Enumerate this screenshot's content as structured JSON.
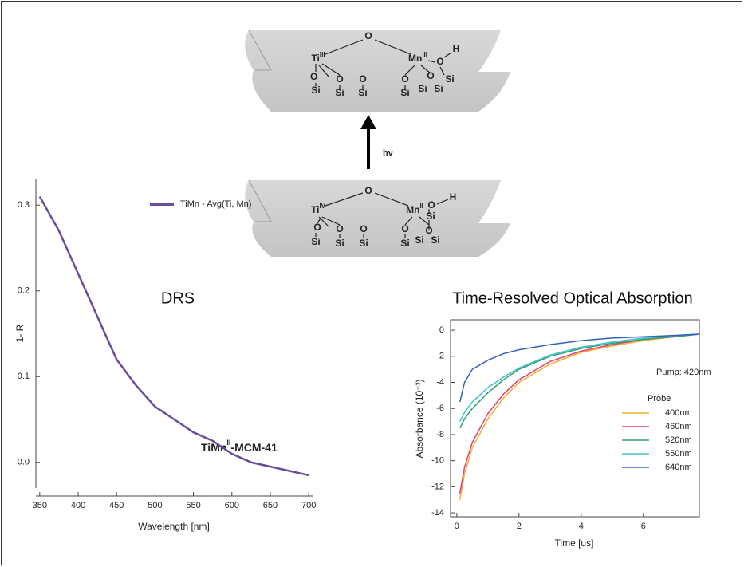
{
  "diagram": {
    "top": {
      "atoms": [
        {
          "label": "Ti",
          "sup": "III"
        },
        {
          "label": "O"
        },
        {
          "label": "Mn",
          "sup": "III"
        },
        {
          "label": "O"
        },
        {
          "label": "H"
        },
        {
          "label": "Si"
        },
        {
          "label": "O",
          "sup": "−"
        },
        {
          "label": "Si"
        },
        {
          "label": "O"
        },
        {
          "label": "Si"
        },
        {
          "label": "O"
        },
        {
          "label": "Si"
        },
        {
          "label": "O"
        },
        {
          "label": "Si"
        },
        {
          "label": "O"
        },
        {
          "label": "Si"
        },
        {
          "label": "Si"
        }
      ]
    },
    "arrow_label": "hν",
    "bottom": {
      "atoms": [
        {
          "label": "Ti",
          "sup": "IV"
        },
        {
          "label": "O"
        },
        {
          "label": "Mn",
          "sup": "II"
        },
        {
          "label": "O"
        },
        {
          "label": "H"
        },
        {
          "label": "Si"
        },
        {
          "label": "O"
        },
        {
          "label": "Si"
        },
        {
          "label": "O"
        },
        {
          "label": "Si"
        },
        {
          "label": "O"
        },
        {
          "label": "Si"
        },
        {
          "label": "O"
        },
        {
          "label": "Si"
        },
        {
          "label": "O"
        },
        {
          "label": "Si"
        },
        {
          "label": "Si"
        }
      ]
    }
  },
  "chart_data": [
    {
      "type": "line",
      "title": "DRS",
      "x_label": "Wavelength [nm]",
      "y_label": "1- R",
      "x": [
        350,
        375,
        400,
        425,
        450,
        475,
        500,
        525,
        550,
        575,
        600,
        625,
        650,
        675,
        700
      ],
      "series": [
        {
          "name": "TiMn - Avg(Ti, Mn)",
          "color": "#6a4c9c",
          "values": [
            0.31,
            0.27,
            0.22,
            0.17,
            0.12,
            0.09,
            0.065,
            0.05,
            0.035,
            0.025,
            0.01,
            0.0,
            -0.005,
            -0.01,
            -0.015
          ]
        }
      ],
      "annotation": {
        "text": "TiMn",
        "sup": "II",
        "rest": "-MCM-41"
      },
      "xlim": [
        345,
        705
      ],
      "xticks": [
        350,
        400,
        450,
        500,
        550,
        600,
        650,
        700
      ],
      "ylim": [
        -0.03,
        0.33
      ],
      "yticks": [
        {
          "value": 0,
          "label": "0.0"
        },
        0.1,
        0.2,
        0.3
      ],
      "frame": false
    },
    {
      "type": "line",
      "title": "Time-Resolved Optical Absorption",
      "x_label": "Time [us]",
      "y_label": "Absorbance (10⁻³)",
      "x": [
        0.1,
        0.25,
        0.5,
        1,
        1.5,
        2,
        3,
        4,
        5,
        6,
        7,
        7.8
      ],
      "series": [
        {
          "name": "400nm",
          "color": "#f0b030",
          "values": [
            -13,
            -11,
            -9,
            -6.8,
            -5.2,
            -4,
            -2.6,
            -1.7,
            -1.2,
            -0.8,
            -0.5,
            -0.3
          ]
        },
        {
          "name": "460nm",
          "color": "#e0407a",
          "values": [
            -12.5,
            -10.5,
            -8.6,
            -6.4,
            -4.9,
            -3.8,
            -2.4,
            -1.6,
            -1.1,
            -0.7,
            -0.5,
            -0.3
          ]
        },
        {
          "name": "520nm",
          "color": "#30a070",
          "values": [
            -7.5,
            -6.8,
            -6,
            -4.8,
            -3.8,
            -3,
            -2,
            -1.4,
            -1,
            -0.7,
            -0.5,
            -0.3
          ]
        },
        {
          "name": "550nm",
          "color": "#40c0d0",
          "values": [
            -7,
            -6.3,
            -5.5,
            -4.4,
            -3.6,
            -2.9,
            -1.9,
            -1.3,
            -0.9,
            -0.6,
            -0.4,
            -0.3
          ]
        },
        {
          "name": "640nm",
          "color": "#3060c0",
          "values": [
            -5.5,
            -4,
            -3,
            -2.3,
            -1.8,
            -1.5,
            -1.1,
            -0.8,
            -0.6,
            -0.5,
            -0.4,
            -0.3
          ]
        }
      ],
      "legend_title": "Probe",
      "annotation": "Pump: 420nm",
      "xlim": [
        -0.2,
        7.8
      ],
      "xticks": [
        0,
        2,
        4,
        6
      ],
      "ylim": [
        -14.3,
        0.8
      ],
      "yticks": [
        0,
        -2,
        -4,
        -6,
        -8,
        -10,
        -12,
        -14
      ],
      "frame": true
    }
  ]
}
